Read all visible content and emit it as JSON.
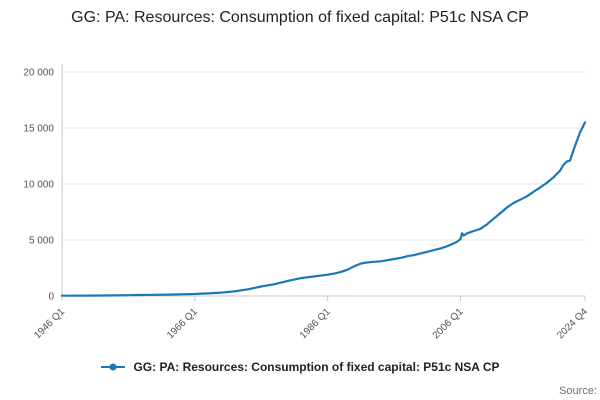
{
  "source_label": "Source:",
  "chart_data": {
    "type": "line",
    "title": "GG: PA: Resources: Consumption of fixed capital: P51c NSA CP",
    "xlabel": "",
    "ylabel": "",
    "xlim": [
      1946,
      2024.75
    ],
    "ylim": [
      0,
      20000
    ],
    "y_ticks": [
      0,
      5000,
      10000,
      15000,
      20000
    ],
    "y_tick_labels": [
      "0",
      "5 000",
      "10 000",
      "15 000",
      "20 000"
    ],
    "x_ticks": [
      1946,
      1966,
      1986,
      2006,
      2024.75
    ],
    "x_tick_labels": [
      "1946 Q1",
      "1966 Q1",
      "1986 Q1",
      "2006 Q1",
      "2024 Q4"
    ],
    "grid": "horizontal",
    "legend_position": "bottom",
    "series": [
      {
        "name": "GG: PA: Resources: Consumption of fixed capital: P51c NSA CP",
        "color": "#1878b8",
        "x": [
          1946,
          1948,
          1950,
          1952,
          1954,
          1956,
          1958,
          1960,
          1962,
          1964,
          1966,
          1968,
          1970,
          1972,
          1974,
          1976,
          1978,
          1980,
          1982,
          1984,
          1986,
          1987,
          1988,
          1989,
          1990,
          1991,
          1992,
          1993,
          1994,
          1995,
          1996,
          1997,
          1998,
          1999,
          2000,
          2001,
          2002,
          2003,
          2004,
          2005,
          2005.5,
          2006,
          2006.25,
          2006.5,
          2007,
          2008,
          2009,
          2010,
          2011,
          2012,
          2013,
          2014,
          2015,
          2016,
          2017,
          2018,
          2019,
          2020,
          2021,
          2021.5,
          2022,
          2022.5,
          2023,
          2023.5,
          2024,
          2024.75
        ],
        "values": [
          25,
          30,
          38,
          48,
          58,
          72,
          88,
          105,
          125,
          150,
          180,
          230,
          300,
          420,
          600,
          850,
          1050,
          1350,
          1600,
          1750,
          1900,
          2000,
          2150,
          2350,
          2650,
          2900,
          3000,
          3050,
          3100,
          3200,
          3300,
          3400,
          3550,
          3650,
          3800,
          3950,
          4100,
          4250,
          4450,
          4700,
          4850,
          5100,
          5600,
          5400,
          5600,
          5800,
          6000,
          6400,
          6900,
          7400,
          7900,
          8300,
          8600,
          8900,
          9300,
          9700,
          10100,
          10600,
          11200,
          11700,
          12000,
          12100,
          13000,
          13800,
          14600,
          15500
        ]
      }
    ]
  }
}
